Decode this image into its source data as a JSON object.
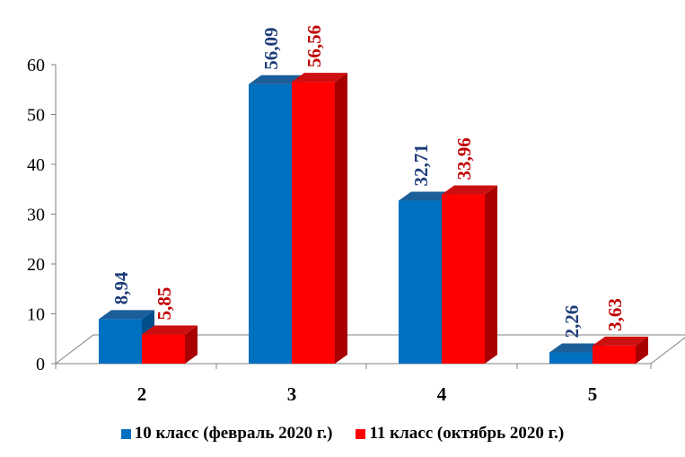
{
  "chart_data": {
    "type": "bar",
    "categories": [
      "2",
      "3",
      "4",
      "5"
    ],
    "series": [
      {
        "name": "10 класс (февраль 2020 г.)",
        "values": [
          8.94,
          56.09,
          32.71,
          2.26
        ],
        "labels": [
          "8,94",
          "56,09",
          "32,71",
          "2,26"
        ],
        "color": "#0070c0",
        "label_color": "#1f3d7a"
      },
      {
        "name": "11 класс (октябрь 2020 г.)",
        "values": [
          5.85,
          56.56,
          33.96,
          3.63
        ],
        "labels": [
          "5,85",
          "56,56",
          "33,96",
          "3,63"
        ],
        "color": "#ff0000",
        "label_color": "#c00000"
      }
    ],
    "y_ticks": [
      "0",
      "10",
      "20",
      "30",
      "40",
      "50",
      "60"
    ],
    "ylim": [
      0,
      60
    ],
    "grid": false,
    "legend_position": "bottom",
    "style": "3d-clustered-bar"
  }
}
